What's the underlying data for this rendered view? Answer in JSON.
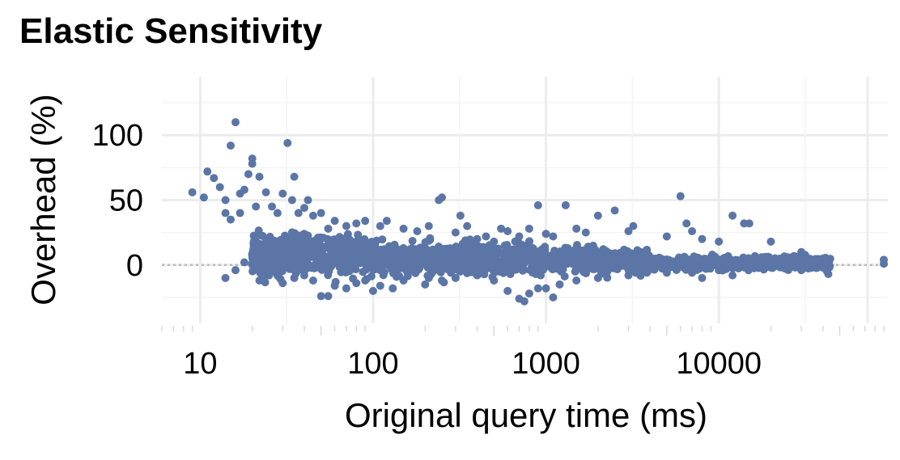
{
  "chart_data": {
    "type": "scatter",
    "title": "Elastic Sensitivity",
    "xlabel": "Original query time (ms)",
    "ylabel": "Overhead (%)",
    "x_scale": "log10",
    "xlim": [
      6,
      95000
    ],
    "ylim": [
      -45,
      145
    ],
    "xticks": [
      {
        "value": 10,
        "label": "10"
      },
      {
        "value": 100,
        "label": "100"
      },
      {
        "value": 1000,
        "label": "1000"
      },
      {
        "value": 10000,
        "label": "10000"
      }
    ],
    "yticks": [
      {
        "value": 0,
        "label": "0"
      },
      {
        "value": 50,
        "label": "50"
      },
      {
        "value": 100,
        "label": "100"
      }
    ],
    "reference_line": {
      "y": 0,
      "style": "dotted",
      "color": "#bbbbbb"
    },
    "grid": true,
    "legend": "none",
    "point_color": "#5b76a6",
    "series": [
      {
        "points": [
          [
            9,
            56
          ],
          [
            10.5,
            52
          ],
          [
            11,
            72
          ],
          [
            12,
            67
          ],
          [
            13,
            60
          ],
          [
            14,
            40
          ],
          [
            14,
            50
          ],
          [
            15,
            92
          ],
          [
            15,
            35
          ],
          [
            16,
            110
          ],
          [
            17,
            55
          ],
          [
            17,
            40
          ],
          [
            18,
            58
          ],
          [
            19,
            70
          ],
          [
            20,
            82
          ],
          [
            20,
            78
          ],
          [
            21,
            45
          ],
          [
            22,
            68
          ],
          [
            24,
            56
          ],
          [
            26,
            45
          ],
          [
            28,
            40
          ],
          [
            30,
            55
          ],
          [
            32,
            94
          ],
          [
            34,
            50
          ],
          [
            35,
            68
          ],
          [
            37,
            40
          ],
          [
            40,
            44
          ],
          [
            42,
            50
          ],
          [
            45,
            38
          ],
          [
            50,
            40
          ],
          [
            55,
            28
          ],
          [
            60,
            34
          ],
          [
            70,
            30
          ],
          [
            80,
            32
          ],
          [
            90,
            34
          ],
          [
            110,
            30
          ],
          [
            120,
            34
          ],
          [
            150,
            28
          ],
          [
            180,
            26
          ],
          [
            210,
            30
          ],
          [
            240,
            50
          ],
          [
            250,
            52
          ],
          [
            300,
            25
          ],
          [
            320,
            38
          ],
          [
            350,
            30
          ],
          [
            400,
            20
          ],
          [
            450,
            22
          ],
          [
            500,
            18
          ],
          [
            550,
            28
          ],
          [
            600,
            26
          ],
          [
            700,
            22
          ],
          [
            800,
            28
          ],
          [
            900,
            46
          ],
          [
            1000,
            24
          ],
          [
            1100,
            22
          ],
          [
            1300,
            46
          ],
          [
            1500,
            28
          ],
          [
            1700,
            25
          ],
          [
            2000,
            38
          ],
          [
            2500,
            42
          ],
          [
            3000,
            26
          ],
          [
            3200,
            30
          ],
          [
            5000,
            22
          ],
          [
            6000,
            53
          ],
          [
            6500,
            32
          ],
          [
            7000,
            26
          ],
          [
            8000,
            20
          ],
          [
            10000,
            18
          ],
          [
            12000,
            38
          ],
          [
            14000,
            32
          ],
          [
            15000,
            32
          ],
          [
            20000,
            18
          ],
          [
            30000,
            10
          ],
          [
            40000,
            5
          ],
          [
            42000,
            2
          ],
          [
            90000,
            4
          ],
          [
            90000,
            1
          ],
          [
            14,
            -10
          ],
          [
            16,
            -4
          ],
          [
            18,
            2
          ],
          [
            22,
            -12
          ],
          [
            25,
            -8
          ],
          [
            28,
            -4
          ],
          [
            30,
            -14
          ],
          [
            35,
            -10
          ],
          [
            40,
            -8
          ],
          [
            45,
            -12
          ],
          [
            50,
            -24
          ],
          [
            55,
            -24
          ],
          [
            60,
            -16
          ],
          [
            70,
            -18
          ],
          [
            80,
            -14
          ],
          [
            90,
            -12
          ],
          [
            100,
            -20
          ],
          [
            110,
            -16
          ],
          [
            130,
            -18
          ],
          [
            150,
            -12
          ],
          [
            200,
            -15
          ],
          [
            250,
            -12
          ],
          [
            300,
            -10
          ],
          [
            400,
            -8
          ],
          [
            500,
            -12
          ],
          [
            600,
            -20
          ],
          [
            700,
            -26
          ],
          [
            750,
            -28
          ],
          [
            800,
            -22
          ],
          [
            900,
            -18
          ],
          [
            1000,
            -18
          ],
          [
            1100,
            -25
          ],
          [
            1200,
            -15
          ],
          [
            1500,
            -12
          ],
          [
            2000,
            -10
          ],
          [
            3000,
            -8
          ],
          [
            5000,
            -6
          ],
          [
            7000,
            -6
          ],
          [
            8000,
            -10
          ],
          [
            10000,
            -4
          ],
          [
            12000,
            -8
          ],
          [
            15000,
            -2
          ],
          [
            20000,
            -2
          ],
          [
            30000,
            -4
          ],
          [
            43000,
            -7
          ]
        ]
      }
    ]
  }
}
